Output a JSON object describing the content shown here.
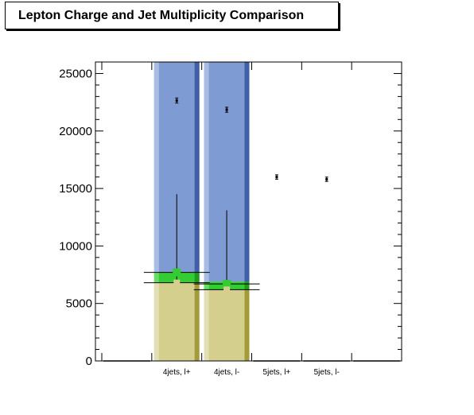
{
  "chart_data": {
    "type": "bar",
    "title": "Lepton Charge and Jet Multiplicity Comparison",
    "xlabel": "",
    "ylabel": "",
    "categories": [
      "",
      "4jets, l+",
      "4jets, l-",
      "5jets, l+",
      "5jets, l-",
      ""
    ],
    "ylim": [
      0,
      26000
    ],
    "yticks": [
      0,
      5000,
      10000,
      15000,
      20000,
      25000
    ],
    "ytick_labels": [
      "0",
      "5000",
      "10000",
      "15000",
      "20000",
      "25000"
    ],
    "grid": false,
    "legend": "none",
    "stacked": true,
    "series": [
      {
        "colour": "#d5cf8e",
        "values": [
          0,
          6800,
          6200,
          0,
          0,
          0
        ]
      },
      {
        "colour": "#33cc33",
        "values": [
          0,
          900,
          700,
          0,
          0,
          0
        ]
      },
      {
        "colour": "#7f9bd4",
        "values": [
          0,
          18300,
          19100,
          0,
          0,
          0
        ]
      }
    ],
    "points": {
      "values": [
        0,
        22650,
        21850,
        16000,
        15800,
        0
      ],
      "errors": [
        0,
        150,
        150,
        120,
        120,
        0
      ]
    },
    "green_markers": [
      {
        "category": 1,
        "value": 7700,
        "low": 6800,
        "high": 14500
      },
      {
        "category": 2,
        "value": 6700,
        "low": 6200,
        "high": 13100
      }
    ],
    "tan_markers": [
      {
        "category": 1,
        "value": 6800
      },
      {
        "category": 2,
        "value": 6200
      }
    ]
  }
}
